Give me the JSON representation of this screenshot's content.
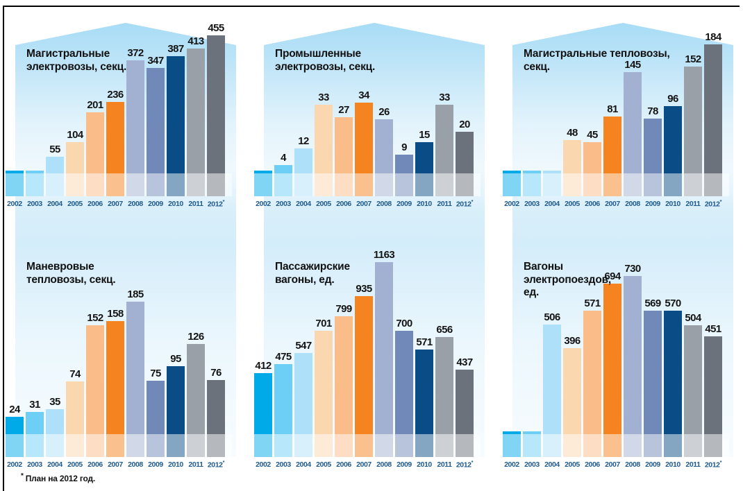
{
  "page": {
    "footnote_star": "*",
    "footnote": "План на 2012 год."
  },
  "years": [
    "2002",
    "2003",
    "2004",
    "2005",
    "2006",
    "2007",
    "2008",
    "2009",
    "2010",
    "2011",
    "2012*"
  ],
  "colors": {
    "bars_by_year": [
      "#00A9E8",
      "#6DCFF6",
      "#AEE0F9",
      "#FBD7B0",
      "#FABD8A",
      "#F5831F",
      "#A2B1D1",
      "#7189B8",
      "#0A4D86",
      "#9AA0A8",
      "#6B727B"
    ],
    "year_label": "#1F5A8C",
    "value_label": "#141414",
    "panel_blue": "#A7DCF6",
    "frame": "#000000"
  },
  "chart_data": [
    {
      "type": "bar",
      "title": "Магистральные электровозы, секц.",
      "title_lines": [
        "Магистральные",
        "электровозы, секц."
      ],
      "categories": [
        "2002",
        "2003",
        "2004",
        "2005",
        "2006",
        "2007",
        "2008",
        "2009",
        "2010",
        "2011",
        "2012*"
      ],
      "values": [
        null,
        null,
        55,
        104,
        201,
        236,
        372,
        347,
        387,
        413,
        455
      ]
    },
    {
      "type": "bar",
      "title": "Промышленные электровозы, секц.",
      "title_lines": [
        "Промышленные",
        "электровозы, секц."
      ],
      "categories": [
        "2002",
        "2003",
        "2004",
        "2005",
        "2006",
        "2007",
        "2008",
        "2009",
        "2010",
        "2011",
        "2012*"
      ],
      "values": [
        null,
        4,
        12,
        33,
        27,
        34,
        26,
        9,
        15,
        33,
        20
      ]
    },
    {
      "type": "bar",
      "title": "Магистральные тепловозы, секц.",
      "title_lines": [
        "Магистральные тепловозы,",
        "секц."
      ],
      "categories": [
        "2002",
        "2003",
        "2004",
        "2005",
        "2006",
        "2007",
        "2008",
        "2009",
        "2010",
        "2011",
        "2012*"
      ],
      "values": [
        null,
        null,
        null,
        48,
        45,
        81,
        145,
        78,
        96,
        152,
        184
      ]
    },
    {
      "type": "bar",
      "title": "Маневровые тепловозы, секц.",
      "title_lines": [
        "Маневровые",
        "тепловозы, секц."
      ],
      "categories": [
        "2002",
        "2003",
        "2004",
        "2005",
        "2006",
        "2007",
        "2008",
        "2009",
        "2010",
        "2011",
        "2012*"
      ],
      "values": [
        24,
        31,
        35,
        74,
        152,
        158,
        185,
        75,
        95,
        126,
        76
      ]
    },
    {
      "type": "bar",
      "title": "Пассажирские вагоны, ед.",
      "title_lines": [
        "Пассажирские",
        "вагоны, ед."
      ],
      "categories": [
        "2002",
        "2003",
        "2004",
        "2005",
        "2006",
        "2007",
        "2008",
        "2009",
        "2010",
        "2011",
        "2012*"
      ],
      "values": [
        412,
        475,
        547,
        701,
        799,
        935,
        1163,
        700,
        571,
        656,
        437
      ]
    },
    {
      "type": "bar",
      "title": "Вагоны электропоездов, ед.",
      "title_lines": [
        "Вагоны",
        "электропоездов,",
        "ед."
      ],
      "categories": [
        "2002",
        "2003",
        "2004",
        "2005",
        "2006",
        "2007",
        "2008",
        "2009",
        "2010",
        "2011",
        "2012*"
      ],
      "values": [
        null,
        null,
        506,
        396,
        571,
        694,
        730,
        569,
        570,
        504,
        451
      ]
    }
  ]
}
